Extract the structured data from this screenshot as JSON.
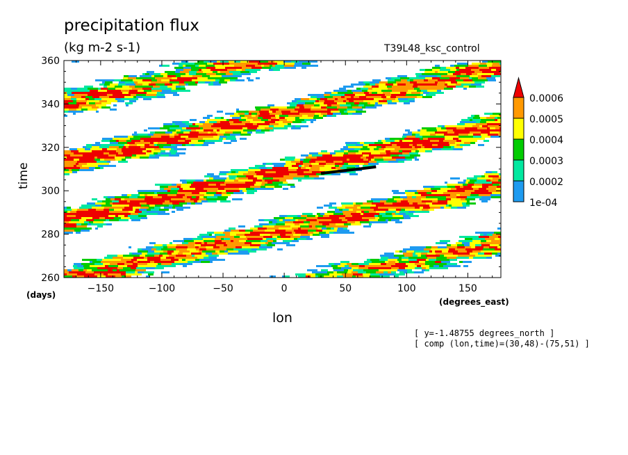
{
  "chart_data": {
    "type": "heatmap",
    "title": "precipitation flux",
    "units": "(kg m-2 s-1)",
    "run_name": "T39L48_ksc_control",
    "xlabel": "lon",
    "ylabel": "time",
    "x_unit": "(degrees_east)",
    "y_unit": "(days)",
    "xlim": [
      -180,
      177
    ],
    "ylim": [
      260,
      360
    ],
    "x_ticks": [
      -150,
      -100,
      -50,
      0,
      50,
      100,
      150
    ],
    "y_ticks": [
      260,
      280,
      300,
      320,
      340,
      360
    ],
    "colorbar": {
      "levels": [
        0.0001,
        0.0002,
        0.0003,
        0.0004,
        0.0005,
        0.0006
      ],
      "labels": [
        "1e-04",
        "0.0002",
        "0.0003",
        "0.0004",
        "0.0005",
        "0.0006"
      ],
      "colors": [
        "#1e9bf0",
        "#00e8a0",
        "#00cc00",
        "#ffff00",
        "#ff9900",
        "#ee0000"
      ],
      "extend": "max"
    },
    "annotation_line": {
      "lon": [
        30,
        75
      ],
      "time": [
        308,
        311
      ]
    },
    "info": [
      "[ y=-1.48755 degrees_north ]",
      "[ comp (lon,time)=(30,48)-(75,51) ]"
    ]
  }
}
